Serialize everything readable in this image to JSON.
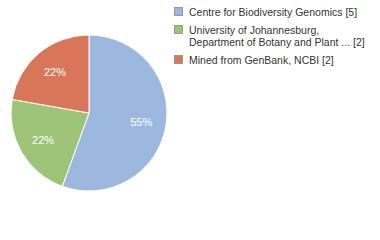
{
  "chart_data": {
    "type": "pie",
    "categories": [
      "Centre for Biodiversity Genomics [5]",
      "University of Johannesburg, Department of Botany and Plant ... [2]",
      "Mined from GenBank, NCBI [2]"
    ],
    "values": [
      55,
      22,
      22
    ],
    "value_labels": [
      "55%",
      "22%",
      "22%"
    ],
    "colors": [
      "#9db8df",
      "#9ec47a",
      "#d9765a"
    ],
    "data_labels": true,
    "legend": "top-right"
  }
}
